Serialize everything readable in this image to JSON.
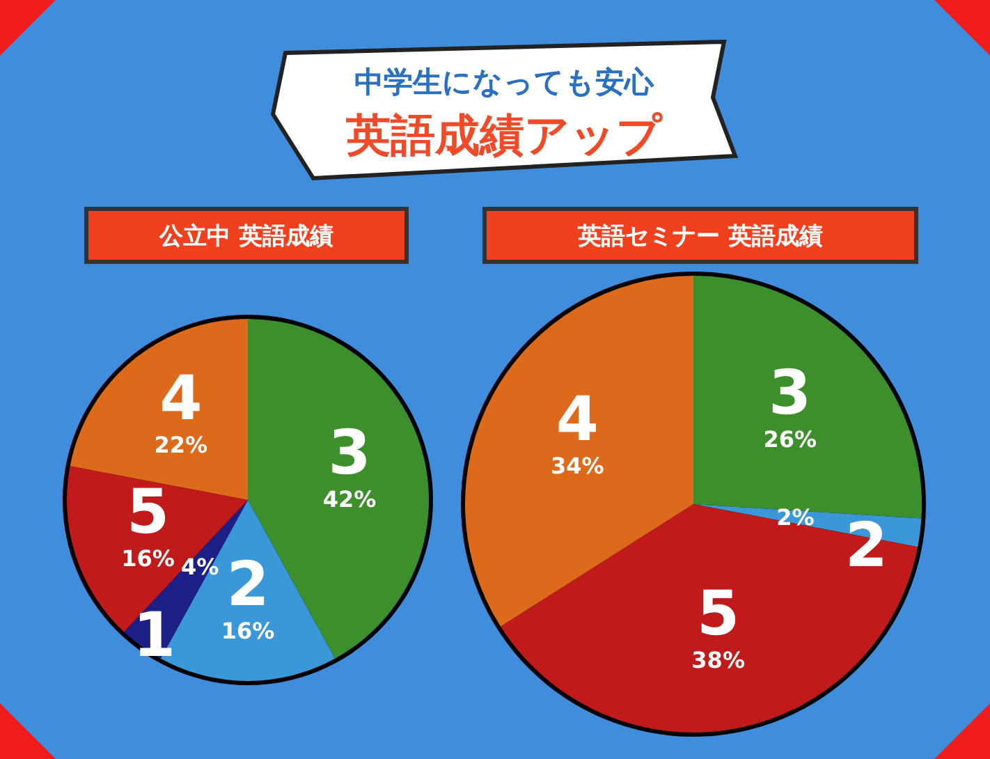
{
  "chart_data": [
    {
      "type": "other",
      "title": "中学生になっても安心",
      "subtitle": "英語成績アップ"
    },
    {
      "type": "pie",
      "title": "公立中 英語成績",
      "categories": [
        "3",
        "2",
        "1",
        "5",
        "4"
      ],
      "values": [
        42,
        16,
        4,
        16,
        22
      ],
      "colors": [
        "#3c8f2a",
        "#3a97d8",
        "#1c1f86",
        "#c01a1a",
        "#dd6a1a"
      ],
      "value_labels": [
        "42%",
        "16%",
        "4%",
        "16%",
        "22%"
      ]
    },
    {
      "type": "pie",
      "title": "英語セミナー 英語成績",
      "categories": [
        "3",
        "2",
        "5",
        "4"
      ],
      "values": [
        26,
        2,
        38,
        34
      ],
      "colors": [
        "#3c8f2a",
        "#3a97d8",
        "#c01a1a",
        "#dd6a1a"
      ],
      "value_labels": [
        "26%",
        "2%",
        "38%",
        "34%"
      ]
    }
  ]
}
